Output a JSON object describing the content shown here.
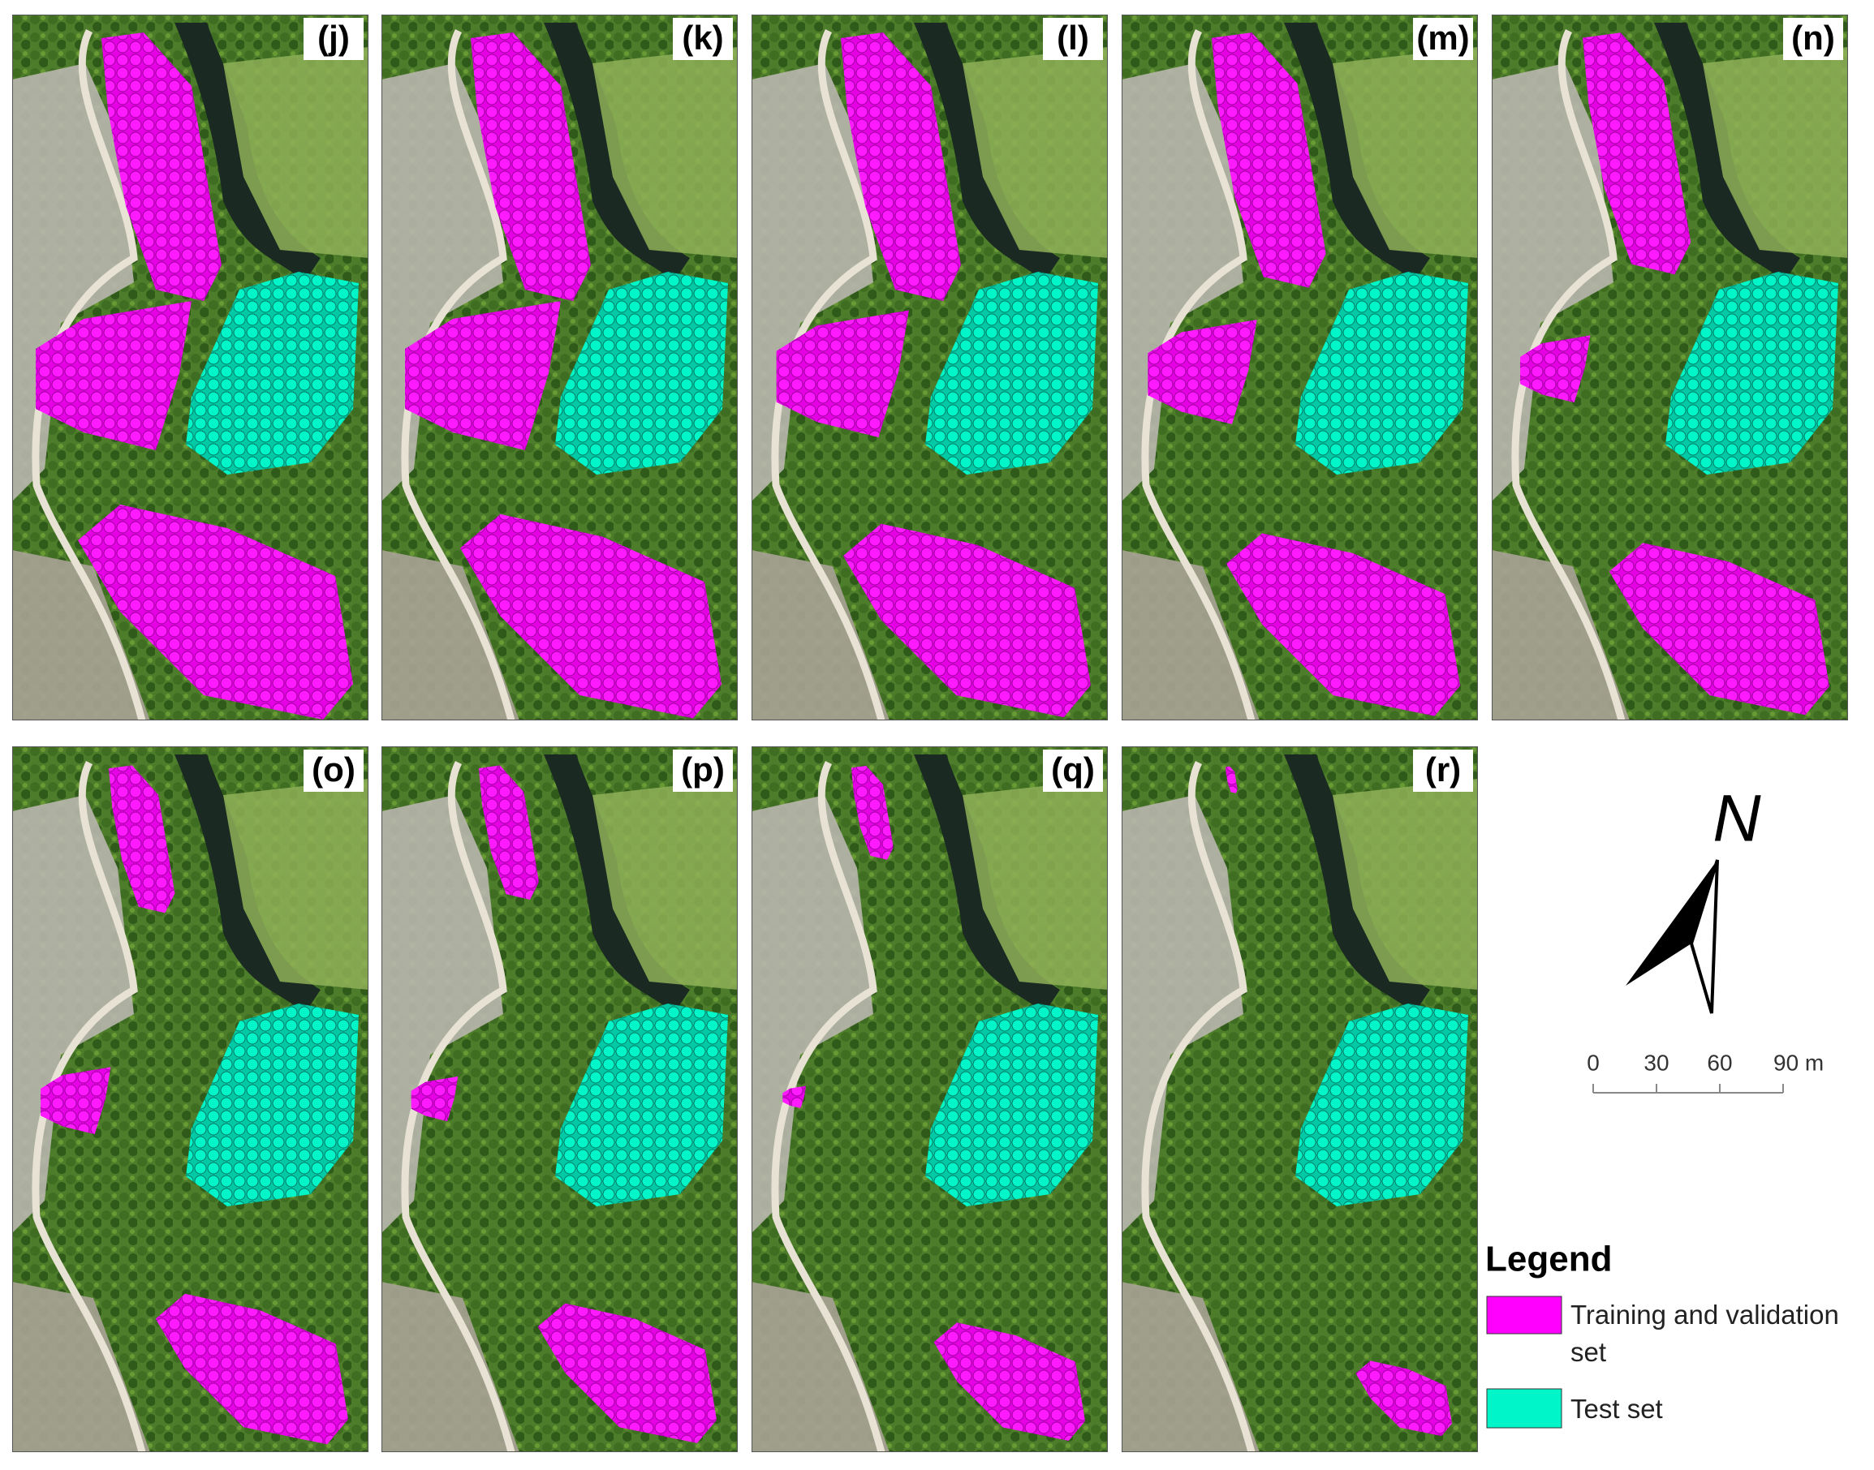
{
  "panels": [
    {
      "label": "(j)"
    },
    {
      "label": "(k)"
    },
    {
      "label": "(l)"
    },
    {
      "label": "(m)"
    },
    {
      "label": "(n)"
    },
    {
      "label": "(o)"
    },
    {
      "label": "(p)"
    },
    {
      "label": "(q)"
    },
    {
      "label": "(r)"
    }
  ],
  "north_arrow": {
    "label": "N"
  },
  "scale_bar": {
    "labels": [
      "0",
      "30",
      "60",
      "90 m"
    ]
  },
  "legend": {
    "title": "Legend",
    "items": [
      {
        "label": "Training and validation set",
        "color": "#ff00ff"
      },
      {
        "label": "Test set",
        "color": "#00f5c8"
      }
    ]
  }
}
